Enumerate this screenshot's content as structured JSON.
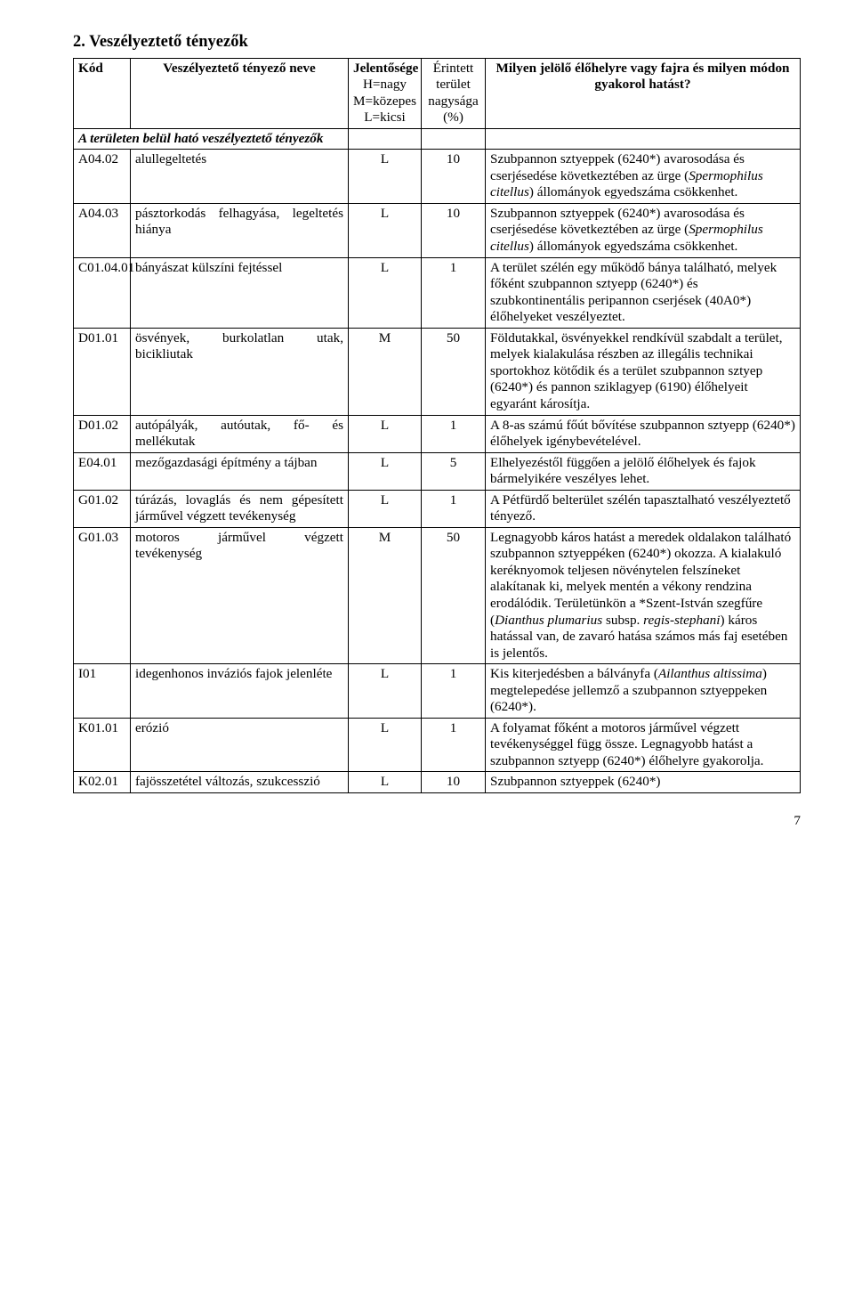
{
  "page": {
    "title": "2. Veszélyeztető tényezők",
    "page_number": "7"
  },
  "table": {
    "headers": {
      "kod": "Kód",
      "nev": "Veszélyeztető tényező neve",
      "jel_l1": "Jelentősége",
      "jel_l2": "H=nagy",
      "jel_l3": "M=közepes",
      "jel_l4": "L=kicsi",
      "ter_l1": "Érintett",
      "ter_l2": "terület",
      "ter_l3": "nagysága",
      "ter_l4": "(%)",
      "hat": "Milyen jelölő élőhelyre vagy fajra és milyen módon gyakorol hatást?"
    },
    "subheader": "A területen belül ható veszélyeztető tényezők",
    "rows": [
      {
        "kod": "A04.02",
        "nev": "alullegeltetés",
        "jel": "L",
        "ter": "10",
        "hat_pre": "Szubpannon sztyeppek (6240*) avarosodása és cserjésedése következtében az ürge (",
        "hat_it1": "Spermophilus citellus",
        "hat_post": ") állományok egyedszáma csökkenhet."
      },
      {
        "kod": "A04.03",
        "nev": "pásztorkodás felhagyása, legeltetés hiánya",
        "jel": "L",
        "ter": "10",
        "hat_pre": "Szubpannon sztyeppek (6240*) avarosodása és cserjésedése következtében az ürge (",
        "hat_it1": "Spermophilus citellus",
        "hat_post": ") állományok egyedszáma csökkenhet."
      },
      {
        "kod": "C01.04.01",
        "nev": "bányászat külszíni fejtéssel",
        "jel": "L",
        "ter": "1",
        "hat_plain": "A terület szélén egy működő bánya található, melyek főként szubpannon sztyepp (6240*) és szubkontinentális peripannon cserjések (40A0*) élőhelyeket veszélyeztet."
      },
      {
        "kod": "D01.01",
        "nev": "ösvények, burkolatlan utak, bicikliutak",
        "jel": "M",
        "ter": "50",
        "hat_plain": "Földutakkal, ösvényekkel rendkívül szabdalt a terület, melyek kialakulása részben az illegális technikai sportokhoz kötődik és a terület szubpannon sztyep (6240*) és pannon sziklagyep (6190) élőhelyeit egyaránt károsítja."
      },
      {
        "kod": "D01.02",
        "nev": "autópályák, autóutak, fő- és mellékutak",
        "jel": "L",
        "ter": "1",
        "hat_plain": "A 8-as számú főút bővítése szubpannon sztyepp (6240*) élőhelyek igénybevételével."
      },
      {
        "kod": "E04.01",
        "nev": "mezőgazdasági építmény a tájban",
        "jel": "L",
        "ter": "5",
        "hat_plain": "Elhelyezéstől függően a jelölő élőhelyek és fajok bármelyikére veszélyes lehet."
      },
      {
        "kod": "G01.02",
        "nev": "túrázás, lovaglás és nem gépesített járművel végzett tevékenység",
        "jel": "L",
        "ter": "1",
        "hat_plain": "A Pétfürdő belterület szélén tapasztalható veszélyeztető tényező."
      },
      {
        "kod": "G01.03",
        "nev": "motoros járművel végzett tevékenység",
        "jel": "M",
        "ter": "50",
        "hat_pre": "Legnagyobb káros hatást a meredek oldalakon található szubpannon sztyeppéken (6240*) okozza. A kialakuló keréknyomok teljesen növénytelen felszíneket alakítanak ki, melyek mentén a vékony rendzina erodálódik. Területünkön a *Szent-István szegfűre (",
        "hat_it1": "Dianthus plumarius",
        "hat_mid": " subsp. ",
        "hat_it2": "regis-stephani",
        "hat_post": ") káros hatással van, de zavaró hatása számos más faj esetében is jelentős."
      },
      {
        "kod": "I01",
        "nev": "idegenhonos inváziós fajok jelenléte",
        "jel": "L",
        "ter": "1",
        "hat_pre": "Kis kiterjedésben a bálványfa (",
        "hat_it1": "Ailanthus altissima",
        "hat_post": ") megtelepedése jellemző a szubpannon sztyeppeken (6240*)."
      },
      {
        "kod": "K01.01",
        "nev": "erózió",
        "jel": "L",
        "ter": "1",
        "hat_plain": "A folyamat főként a motoros járművel végzett tevékenységgel függ össze. Legnagyobb hatást a szubpannon sztyepp (6240*) élőhelyre gyakorolja."
      },
      {
        "kod": "K02.01",
        "nev": "fajösszetétel változás, szukcesszió",
        "jel": "L",
        "ter": "10",
        "hat_plain": "Szubpannon sztyeppek (6240*)"
      }
    ]
  }
}
